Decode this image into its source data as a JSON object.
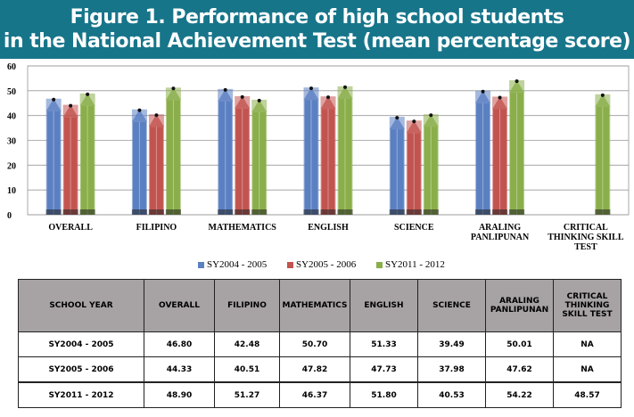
{
  "title": {
    "line1": "Figure 1. Performance of high school students",
    "line2": "in the National Achievement Test (mean percentage score)"
  },
  "chart_data": {
    "type": "bar",
    "categories": [
      "OVERALL",
      "FILIPINO",
      "MATHEMATICS",
      "ENGLISH",
      "SCIENCE",
      "ARALING PANLIPUNAN",
      "CRITICAL THINKING SKILL TEST"
    ],
    "category_lines": [
      [
        "OVERALL"
      ],
      [
        "FILIPINO"
      ],
      [
        "MATHEMATICS"
      ],
      [
        "ENGLISH"
      ],
      [
        "SCIENCE"
      ],
      [
        "ARALING",
        "PANLIPUNAN"
      ],
      [
        "CRITICAL",
        "THINKING SKILL",
        "TEST"
      ]
    ],
    "series": [
      {
        "name": "SY2004 - 2005",
        "color": "#5b80c2",
        "values": [
          46.8,
          42.48,
          50.7,
          51.33,
          39.49,
          50.01,
          null
        ]
      },
      {
        "name": "SY2005 - 2006",
        "color": "#c25450",
        "values": [
          44.33,
          40.51,
          47.82,
          47.73,
          37.98,
          47.62,
          null
        ]
      },
      {
        "name": "SY2011 - 2012",
        "color": "#8aae4a",
        "values": [
          48.9,
          51.27,
          46.37,
          51.8,
          40.53,
          54.22,
          48.57
        ]
      }
    ],
    "ylim": [
      0,
      60
    ],
    "yticks": [
      0,
      10,
      20,
      30,
      40,
      50,
      60
    ],
    "grid": true,
    "legend": "bottom"
  },
  "table": {
    "headers": [
      "SCHOOL YEAR",
      "OVERALL",
      "FILIPINO",
      "MATHEMATICS",
      "ENGLISH",
      "SCIENCE",
      "ARALING PANLIPUNAN",
      "CRITICAL THINKING SKILL TEST"
    ],
    "rows": [
      [
        "SY2004 - 2005",
        "46.80",
        "42.48",
        "50.70",
        "51.33",
        "39.49",
        "50.01",
        "NA"
      ],
      [
        "SY2005 - 2006",
        "44.33",
        "40.51",
        "47.82",
        "47.73",
        "37.98",
        "47.62",
        "NA"
      ],
      [
        "SY2011 - 2012",
        "48.90",
        "51.27",
        "46.37",
        "51.80",
        "40.53",
        "54.22",
        "48.57"
      ]
    ]
  }
}
